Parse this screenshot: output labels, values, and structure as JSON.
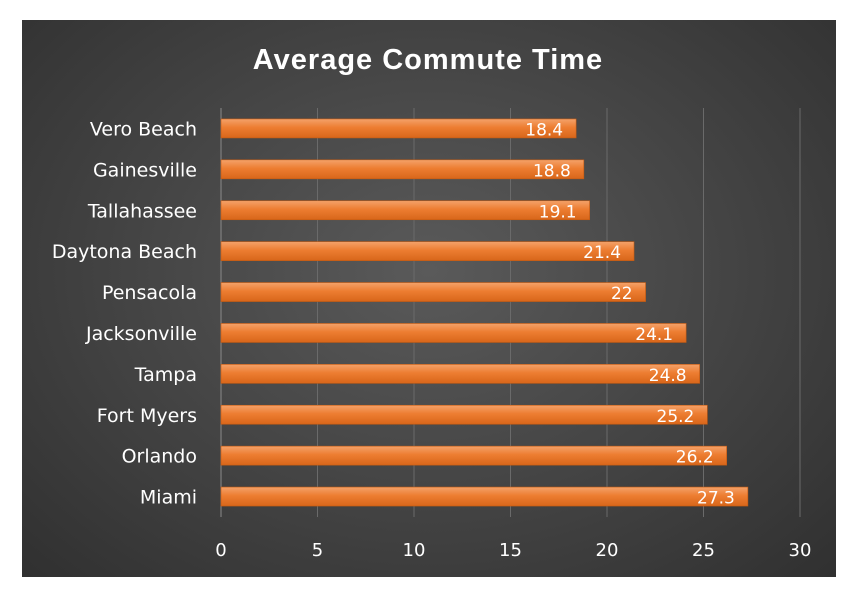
{
  "chart_data": {
    "type": "bar",
    "orientation": "horizontal",
    "title": "Average Commute Time",
    "xlabel": "",
    "ylabel": "",
    "categories": [
      "Vero Beach",
      "Gainesville",
      "Tallahassee",
      "Daytona Beach",
      "Pensacola",
      "Jacksonville",
      "Tampa",
      "Fort Myers",
      "Orlando",
      "Miami"
    ],
    "values": [
      18.4,
      18.8,
      19.1,
      21.4,
      22,
      24.1,
      24.8,
      25.2,
      26.2,
      27.3
    ],
    "xlim": [
      0,
      30
    ],
    "xticks": [
      0,
      5,
      10,
      15,
      20,
      25,
      30
    ],
    "grid": true,
    "legend": "none",
    "data_labels": [
      "18.4",
      "18.8",
      "19.1",
      "21.4",
      "22",
      "24.1",
      "24.8",
      "25.2",
      "26.2",
      "27.3"
    ],
    "colors": {
      "bar": "#ED7D31",
      "background": "#404040",
      "text": "#FFFFFF"
    }
  }
}
